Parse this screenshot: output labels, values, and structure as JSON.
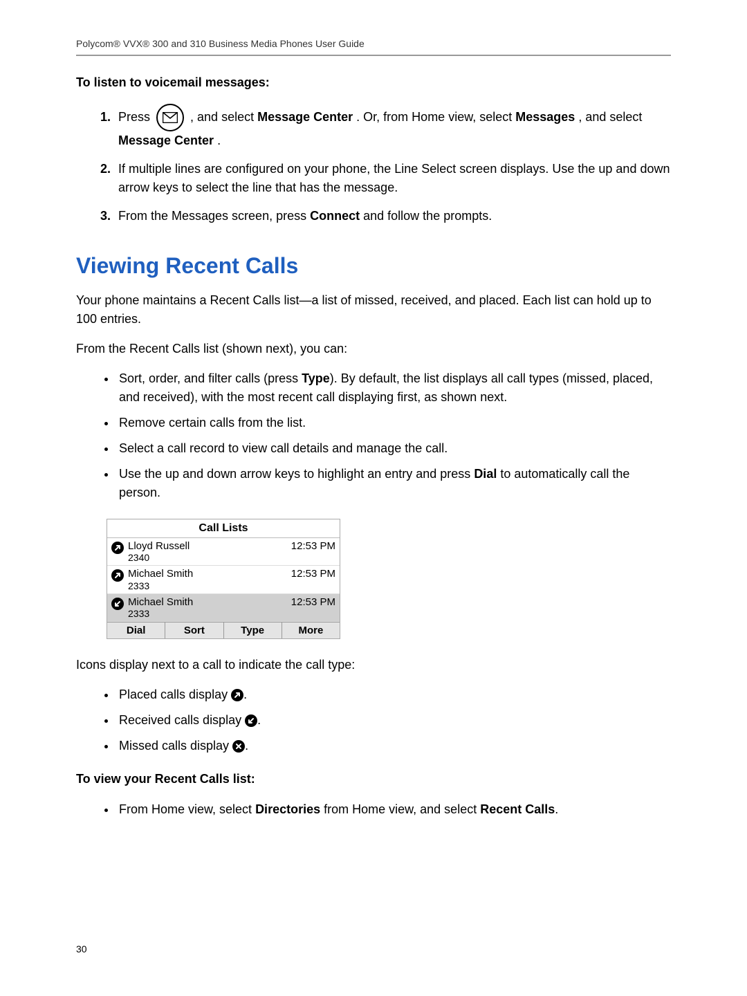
{
  "header": {
    "title": "Polycom® VVX® 300 and 310 Business Media Phones User Guide",
    "rule_color": "#999999"
  },
  "voicemail": {
    "heading": "To listen to voicemail messages:",
    "step1_a": "Press ",
    "step1_b": " , and select ",
    "step1_bold1": "Message Center",
    "step1_c": ". Or, from Home view, select ",
    "step1_bold2": "Messages",
    "step1_d": ", and select ",
    "step1_bold3": "Message Center",
    "step1_e": ".",
    "step2": "If multiple lines are configured on your phone, the Line Select screen displays. Use the up and down arrow keys to select the line that has the message.",
    "step3_a": "From the Messages screen, press ",
    "step3_bold": "Connect",
    "step3_b": " and follow the prompts."
  },
  "section": {
    "title": "Viewing Recent Calls",
    "title_color": "#1f5fbf",
    "para1": "Your phone maintains a Recent Calls list—a list of missed, received, and placed. Each list can hold up to 100 entries.",
    "para2": "From the Recent Calls list (shown next), you can:",
    "bullets1": {
      "b1_a": "Sort, order, and filter calls (press ",
      "b1_bold": "Type",
      "b1_b": "). By default, the list displays all call types (missed, placed, and received), with the most recent call displaying first, as shown next.",
      "b2": "Remove certain calls from the list.",
      "b3": "Select a call record to view call details and manage the call.",
      "b4_a": "Use the up and down arrow keys to highlight an entry and press ",
      "b4_bold": "Dial",
      "b4_b": " to automatically call the person."
    }
  },
  "phone": {
    "title": "Call Lists",
    "rows": [
      {
        "name": "Lloyd Russell",
        "ext": "2340",
        "time": "12:53 PM",
        "type": "placed",
        "selected": false
      },
      {
        "name": "Michael Smith",
        "ext": "2333",
        "time": "12:53 PM",
        "type": "placed",
        "selected": false
      },
      {
        "name": "Michael Smith",
        "ext": "2333",
        "time": "12:53 PM",
        "type": "received",
        "selected": true
      }
    ],
    "softkeys": [
      "Dial",
      "Sort",
      "Type",
      "More"
    ],
    "colors": {
      "bg": "#ffffff",
      "sel": "#d0d0d0",
      "border": "#aaaaaa"
    }
  },
  "icons_section": {
    "intro": "Icons display next to a call to indicate the call type:",
    "b1": "Placed calls display ",
    "b2": "Received calls display ",
    "b3": "Missed calls display ",
    "dot_period": "."
  },
  "view_recent": {
    "heading": "To view your Recent Calls list:",
    "b_a": "From Home view, select ",
    "b_bold1": "Directories",
    "b_b": " from Home view, and select ",
    "b_bold2": "Recent Calls",
    "b_c": "."
  },
  "page_number": "30"
}
